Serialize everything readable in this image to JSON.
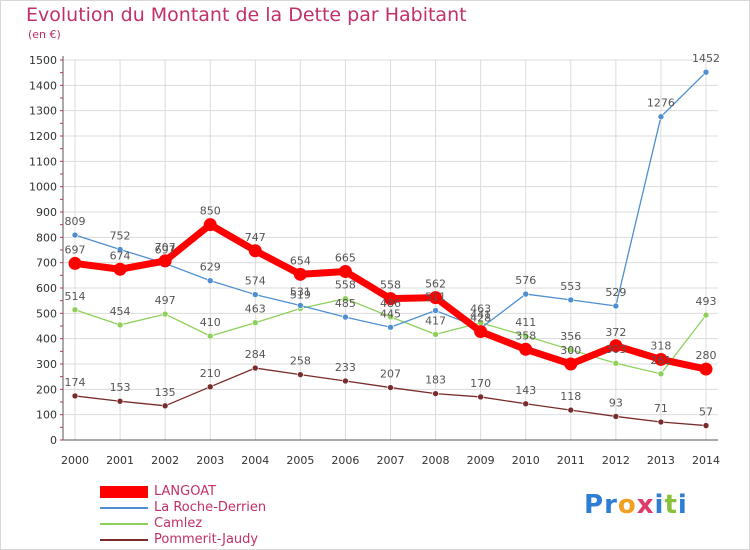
{
  "chart_data": {
    "type": "line",
    "title": "Evolution du Montant de la Dette par Habitant",
    "subtitle": "(en €)",
    "x": [
      "2000",
      "2001",
      "2002",
      "2003",
      "2004",
      "2005",
      "2006",
      "2007",
      "2008",
      "2009",
      "2010",
      "2011",
      "2012",
      "2013",
      "2014"
    ],
    "ylim": [
      0,
      1500
    ],
    "yticks": [
      0,
      100,
      200,
      300,
      400,
      500,
      600,
      700,
      800,
      900,
      1000,
      1100,
      1200,
      1300,
      1400,
      1500
    ],
    "grid": true,
    "legend_position": "bottom-left",
    "series": [
      {
        "name": "LANGOAT",
        "color": "#ff0000",
        "values": [
          697,
          674,
          707,
          850,
          747,
          654,
          665,
          558,
          562,
          428,
          358,
          300,
          372,
          318,
          280
        ]
      },
      {
        "name": "La Roche-Derrien",
        "color": "#4f8fd0",
        "values": [
          809,
          752,
          697,
          629,
          574,
          531,
          485,
          445,
          511,
          441,
          576,
          553,
          529,
          1276,
          1452
        ]
      },
      {
        "name": "Camlez",
        "color": "#8ed05b",
        "values": [
          514,
          454,
          497,
          410,
          463,
          519,
          558,
          486,
          417,
          463,
          411,
          356,
          303,
          261,
          493
        ]
      },
      {
        "name": "Pommerit-Jaudy",
        "color": "#7a2b2b",
        "values": [
          174,
          153,
          135,
          210,
          284,
          258,
          233,
          207,
          183,
          170,
          143,
          118,
          93,
          71,
          57
        ]
      }
    ]
  },
  "logo": {
    "text": "Proxiti"
  }
}
